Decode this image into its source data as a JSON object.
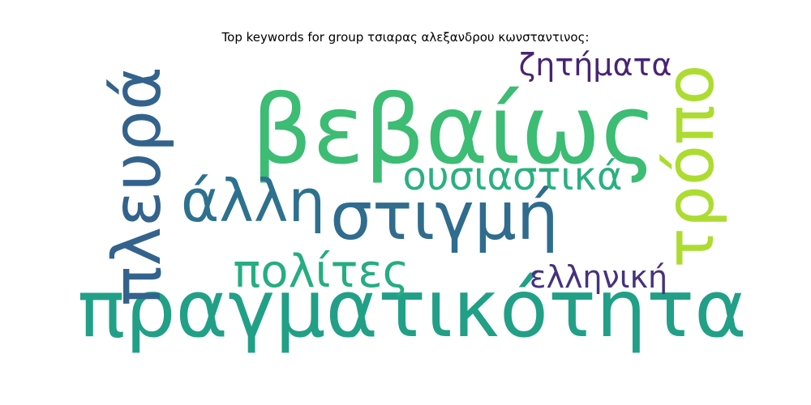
{
  "title": "Top keywords for group τσιαρας αλεξανδρου κωνσταντινος:",
  "words": [
    {
      "text": "βεβαίως",
      "color": "#3dbc74"
    },
    {
      "text": "πραγματικότητα",
      "color": "#21a087"
    },
    {
      "text": "πλευρά",
      "color": "#33638d"
    },
    {
      "text": "τρόπο",
      "color": "#addc30"
    },
    {
      "text": "στιγμή",
      "color": "#2f6c8e"
    },
    {
      "text": "άλλη",
      "color": "#2d718e"
    },
    {
      "text": "ουσιαστικά",
      "color": "#2ab07f"
    },
    {
      "text": "πολίτες",
      "color": "#26ad81"
    },
    {
      "text": "ζητήματα",
      "color": "#482475"
    },
    {
      "text": "ελληνική",
      "color": "#46327e"
    }
  ]
}
